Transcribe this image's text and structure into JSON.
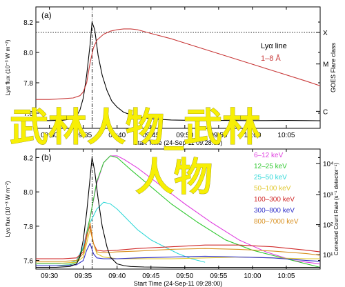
{
  "overlay": {
    "line1": "武林人物_武林",
    "line2": "人物"
  },
  "chart_data": [
    {
      "type": "line",
      "panel_label": "(a)",
      "ylabel": "Lyα flux (10⁻³ W m⁻²)",
      "ylim": [
        7.5,
        8.3
      ],
      "yticks": [
        "7.6",
        "7.8",
        "8.0",
        "8.2"
      ],
      "right_axis_label": "GOES Flare class",
      "right_ticks": [
        "X",
        "M",
        "C"
      ],
      "xticks": [
        "09:30",
        "09:35",
        "09:40",
        "09:45",
        "09:50",
        "09:55",
        "10:00",
        "10:05"
      ],
      "xlabel": "Start Time (24-Sep-11 09:28:00)",
      "x_range_minutes": [
        0,
        42
      ],
      "x_unit": "minutes after 09:28:00",
      "vline_x": 8.3,
      "hline_level": "X",
      "legend": [
        {
          "label": "Lyα line",
          "color": "#000000"
        },
        {
          "label": "1–8 Å",
          "color": "#c83838"
        }
      ],
      "series": [
        {
          "name": "Lyα line",
          "color": "#000000",
          "x": [
            0,
            2,
            4,
            5,
            6,
            6.5,
            7,
            7.5,
            8,
            8.3,
            8.7,
            9.2,
            9.8,
            10.5,
            11.2,
            12,
            13,
            14,
            15,
            16,
            17,
            18,
            20,
            22,
            25,
            28,
            31,
            34,
            37,
            40,
            42
          ],
          "y": [
            7.55,
            7.551,
            7.553,
            7.56,
            7.58,
            7.62,
            7.7,
            7.85,
            8.05,
            8.2,
            8.15,
            7.98,
            7.85,
            7.75,
            7.68,
            7.64,
            7.605,
            7.59,
            7.575,
            7.57,
            7.563,
            7.56,
            7.555,
            7.553,
            7.552,
            7.552,
            7.551,
            7.551,
            7.552,
            7.551,
            7.55
          ]
        },
        {
          "name": "1–8 Å",
          "color": "#c83838",
          "x": [
            0,
            2,
            4,
            5.5,
            6.5,
            7,
            7.5,
            8,
            8.5,
            9,
            9.5,
            10,
            11,
            12,
            13,
            14,
            15,
            17,
            20,
            25,
            30,
            35,
            40,
            42
          ],
          "y": [
            7.69,
            7.69,
            7.695,
            7.7,
            7.715,
            7.74,
            7.8,
            7.93,
            8.03,
            8.08,
            8.1,
            8.12,
            8.14,
            8.15,
            8.155,
            8.155,
            8.15,
            8.125,
            8.09,
            8.02,
            7.95,
            7.88,
            7.81,
            7.78
          ]
        }
      ]
    },
    {
      "type": "line",
      "panel_label": "(b)",
      "ylabel": "Lyα flux (10⁻³ W m⁻²)",
      "ylim": [
        7.55,
        8.25
      ],
      "yticks": [
        "7.6",
        "7.8",
        "8.0",
        "8.2"
      ],
      "right_axis_label": "Corrected Count Rate (s⁻¹ detector⁻¹)",
      "right_ticks": [
        "10⁴",
        "10³",
        "10²",
        "10¹"
      ],
      "xticks": [
        "09:30",
        "09:35",
        "09:40",
        "09:45",
        "09:50",
        "09:55",
        "10:00",
        "10:05"
      ],
      "xlabel": "Start Time (24-Sep-11 09:28:00)",
      "x_range_minutes": [
        0,
        42
      ],
      "x_unit": "minutes after 09:28:00",
      "vline_x": 8.3,
      "legend": [
        {
          "label": "6–12 keV",
          "color": "#e040e0"
        },
        {
          "label": "12–25 keV",
          "color": "#30c830"
        },
        {
          "label": "25–50 keV",
          "color": "#30d8d8"
        },
        {
          "label": "50–100 keV",
          "color": "#e0c830"
        },
        {
          "label": "100–300 keV",
          "color": "#d02828"
        },
        {
          "label": "300–800 keV",
          "color": "#3030c8"
        },
        {
          "label": "800–7000 keV",
          "color": "#d89020"
        }
      ],
      "series": [
        {
          "name": "Lyα line",
          "color": "#000000",
          "x": [
            0,
            3,
            5,
            6,
            6.5,
            7,
            7.5,
            8,
            8.3,
            8.7,
            9.2,
            9.8,
            10.5,
            11,
            12,
            13,
            14,
            16,
            20,
            25,
            30,
            35,
            40,
            42
          ],
          "y": [
            7.56,
            7.56,
            7.565,
            7.58,
            7.62,
            7.72,
            7.88,
            8.08,
            8.2,
            8.12,
            7.96,
            7.8,
            7.68,
            7.62,
            7.58,
            7.57,
            7.565,
            7.562,
            7.56,
            7.56,
            7.56,
            7.56,
            7.56,
            7.56
          ]
        },
        {
          "name": "6–12 keV",
          "color": "#e040e0",
          "x": [
            0,
            3,
            5,
            6,
            7,
            8,
            9,
            10,
            11,
            12,
            13,
            15,
            18,
            22,
            26,
            30,
            34,
            38,
            42
          ],
          "y": [
            7.58,
            7.58,
            7.585,
            7.6,
            7.68,
            7.85,
            8.05,
            8.17,
            8.21,
            8.21,
            8.19,
            8.14,
            8.05,
            7.93,
            7.82,
            7.72,
            7.65,
            7.6,
            7.58
          ]
        },
        {
          "name": "12–25 keV",
          "color": "#30c830",
          "x": [
            0,
            3,
            5,
            6,
            7,
            8,
            9,
            10,
            11,
            12,
            14,
            17,
            20,
            24,
            28,
            32,
            36,
            39,
            42
          ],
          "y": [
            7.57,
            7.57,
            7.575,
            7.59,
            7.67,
            7.85,
            8.06,
            8.17,
            8.21,
            8.2,
            8.13,
            8.03,
            7.93,
            7.82,
            7.72,
            7.66,
            7.62,
            7.59,
            7.56
          ]
        },
        {
          "name": "25–50 keV",
          "color": "#30d8d8",
          "x": [
            0,
            3,
            5,
            6,
            7,
            8,
            9,
            10,
            11,
            12,
            13,
            14,
            15,
            17,
            19,
            21,
            23,
            25
          ],
          "y": [
            7.58,
            7.58,
            7.585,
            7.6,
            7.68,
            7.82,
            7.9,
            7.94,
            7.93,
            7.9,
            7.86,
            7.82,
            7.78,
            7.72,
            7.68,
            7.64,
            7.61,
            7.59
          ]
        },
        {
          "name": "50–100 keV",
          "color": "#e0c830",
          "x": [
            0,
            4,
            6,
            7,
            7.5,
            8,
            8.5,
            9,
            10,
            12,
            15,
            20,
            25,
            30,
            35,
            40,
            42
          ],
          "y": [
            7.585,
            7.585,
            7.59,
            7.62,
            7.7,
            7.78,
            7.7,
            7.64,
            7.62,
            7.61,
            7.61,
            7.61,
            7.615,
            7.62,
            7.615,
            7.61,
            7.61
          ]
        },
        {
          "name": "100–300 keV",
          "color": "#d02828",
          "x": [
            0,
            4,
            6,
            7,
            7.5,
            8,
            8.5,
            9,
            10,
            12,
            15,
            20,
            25,
            30,
            35,
            40,
            42
          ],
          "y": [
            7.61,
            7.61,
            7.615,
            7.65,
            7.75,
            7.8,
            7.7,
            7.66,
            7.655,
            7.66,
            7.67,
            7.68,
            7.69,
            7.69,
            7.68,
            7.66,
            7.65
          ]
        },
        {
          "name": "300–800 keV",
          "color": "#3030c8",
          "x": [
            0,
            4,
            6,
            7,
            7.5,
            8,
            8.5,
            9,
            10,
            12,
            15,
            20,
            25,
            30,
            35,
            40,
            42
          ],
          "y": [
            7.57,
            7.57,
            7.575,
            7.6,
            7.66,
            7.7,
            7.64,
            7.615,
            7.61,
            7.61,
            7.615,
            7.62,
            7.625,
            7.62,
            7.615,
            7.6,
            7.595
          ]
        },
        {
          "name": "800–7000 keV",
          "color": "#d89020",
          "x": [
            0,
            4,
            6,
            7,
            7.5,
            8,
            8.5,
            9,
            10,
            12,
            15,
            20,
            25,
            30,
            35,
            40,
            42
          ],
          "y": [
            7.595,
            7.595,
            7.6,
            7.64,
            7.73,
            7.82,
            7.7,
            7.65,
            7.645,
            7.65,
            7.655,
            7.665,
            7.67,
            7.665,
            7.655,
            7.64,
            7.63
          ]
        }
      ]
    }
  ]
}
